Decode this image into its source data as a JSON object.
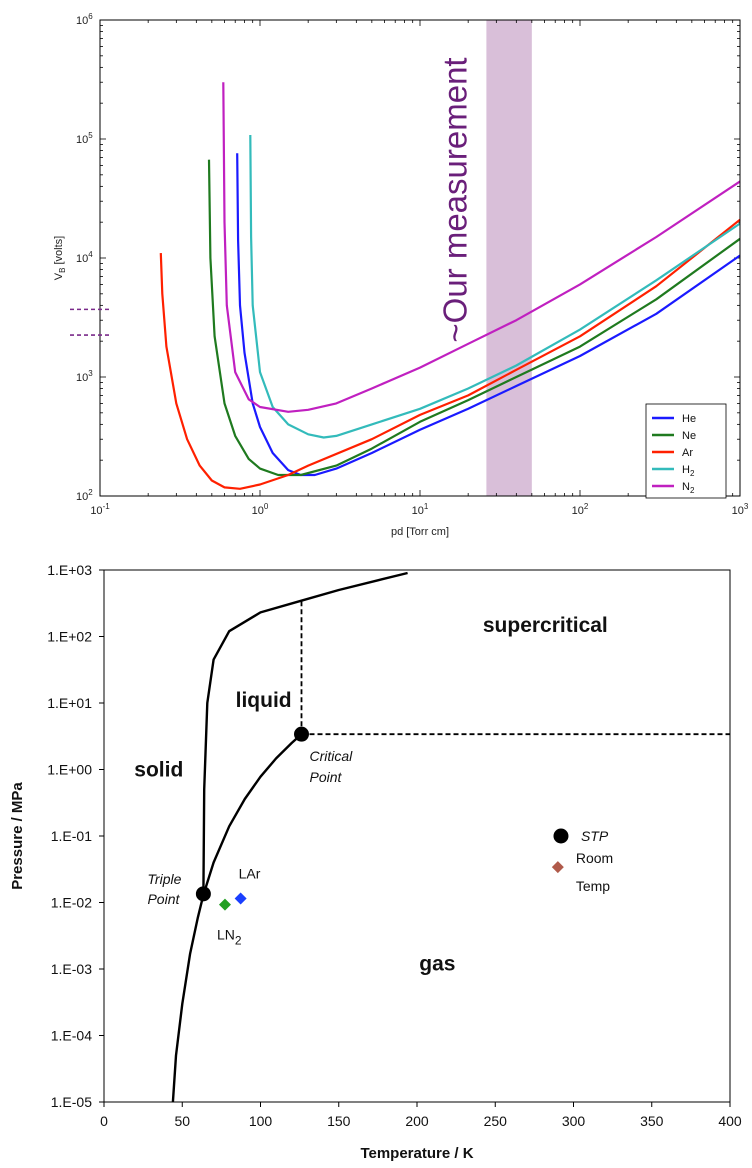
{
  "chart_data": [
    {
      "type": "line",
      "xscale": "log",
      "yscale": "log",
      "xlabel": "pd [Torr cm]",
      "ylabel": "V",
      "ylabel_sub": "B",
      "ylabel_unit": "[volts]",
      "xlim": [
        0.1,
        1000
      ],
      "ylim": [
        100,
        1000000
      ],
      "x_ticks": [
        {
          "v": 0.1,
          "b": "10",
          "e": "-1"
        },
        {
          "v": 1,
          "b": "10",
          "e": "0"
        },
        {
          "v": 10,
          "b": "10",
          "e": "1"
        },
        {
          "v": 100,
          "b": "10",
          "e": "2"
        },
        {
          "v": 1000,
          "b": "10",
          "e": "3"
        }
      ],
      "y_ticks": [
        {
          "v": 100,
          "b": "10",
          "e": "2"
        },
        {
          "v": 1000,
          "b": "10",
          "e": "3"
        },
        {
          "v": 10000,
          "b": "10",
          "e": "4"
        },
        {
          "v": 100000,
          "b": "10",
          "e": "5"
        },
        {
          "v": 1000000,
          "b": "10",
          "e": "6"
        }
      ],
      "legend_position": "lower-right",
      "series": [
        {
          "name": "He",
          "sub": "",
          "color": "#1a1aff",
          "points": [
            [
              0.72,
              76000
            ],
            [
              0.73,
              14000
            ],
            [
              0.75,
              4000
            ],
            [
              0.8,
              1600
            ],
            [
              0.9,
              600
            ],
            [
              1.0,
              380
            ],
            [
              1.2,
              230
            ],
            [
              1.5,
              165
            ],
            [
              1.8,
              150
            ],
            [
              2.2,
              150
            ],
            [
              3,
              170
            ],
            [
              5,
              230
            ],
            [
              10,
              360
            ],
            [
              20,
              540
            ],
            [
              40,
              840
            ],
            [
              100,
              1500
            ],
            [
              300,
              3400
            ],
            [
              1000,
              10500
            ]
          ]
        },
        {
          "name": "Ne",
          "sub": "",
          "color": "#1f7a1f",
          "points": [
            [
              0.48,
              67000
            ],
            [
              0.49,
              10000
            ],
            [
              0.52,
              2200
            ],
            [
              0.6,
              600
            ],
            [
              0.7,
              320
            ],
            [
              0.85,
              205
            ],
            [
              1.0,
              170
            ],
            [
              1.3,
              150
            ],
            [
              1.8,
              150
            ],
            [
              3,
              180
            ],
            [
              5,
              250
            ],
            [
              10,
              420
            ],
            [
              20,
              640
            ],
            [
              40,
              1000
            ],
            [
              100,
              1800
            ],
            [
              300,
              4500
            ],
            [
              1000,
              14500
            ]
          ]
        },
        {
          "name": "Ar",
          "sub": "",
          "color": "#ff2000",
          "points": [
            [
              0.24,
              11000
            ],
            [
              0.245,
              5000
            ],
            [
              0.26,
              1800
            ],
            [
              0.3,
              600
            ],
            [
              0.35,
              300
            ],
            [
              0.42,
              180
            ],
            [
              0.5,
              135
            ],
            [
              0.6,
              118
            ],
            [
              0.75,
              115
            ],
            [
              1.0,
              125
            ],
            [
              1.5,
              150
            ],
            [
              2,
              180
            ],
            [
              5,
              300
            ],
            [
              10,
              480
            ],
            [
              20,
              700
            ],
            [
              40,
              1150
            ],
            [
              100,
              2200
            ],
            [
              300,
              5800
            ],
            [
              1000,
              21000
            ]
          ]
        },
        {
          "name": "H",
          "sub": "2",
          "color": "#33bbbb",
          "points": [
            [
              0.87,
              108000
            ],
            [
              0.88,
              15000
            ],
            [
              0.9,
              4000
            ],
            [
              1.0,
              1100
            ],
            [
              1.2,
              560
            ],
            [
              1.5,
              400
            ],
            [
              2,
              330
            ],
            [
              2.5,
              310
            ],
            [
              3,
              320
            ],
            [
              5,
              400
            ],
            [
              10,
              540
            ],
            [
              20,
              800
            ],
            [
              40,
              1250
            ],
            [
              100,
              2500
            ],
            [
              300,
              6500
            ],
            [
              1000,
              19500
            ]
          ]
        },
        {
          "name": "N",
          "sub": "2",
          "color": "#c020c0",
          "points": [
            [
              0.59,
              300000
            ],
            [
              0.6,
              20000
            ],
            [
              0.62,
              4000
            ],
            [
              0.7,
              1100
            ],
            [
              0.85,
              650
            ],
            [
              1.0,
              560
            ],
            [
              1.5,
              510
            ],
            [
              2,
              530
            ],
            [
              3,
              600
            ],
            [
              5,
              800
            ],
            [
              10,
              1200
            ],
            [
              20,
              1900
            ],
            [
              40,
              3000
            ],
            [
              100,
              6000
            ],
            [
              300,
              15000
            ],
            [
              1000,
              44000
            ]
          ]
        }
      ],
      "shaded_band": {
        "x_range": [
          26,
          50
        ],
        "label": "~Our measurement",
        "color": "#d9bfd9"
      },
      "markers": [
        {
          "y": 3700,
          "color": "#7a2a8a"
        },
        {
          "y": 2250,
          "color": "#7a2a8a"
        }
      ]
    },
    {
      "type": "line",
      "xscale": "linear",
      "yscale": "log",
      "xlabel": "Temperature / K",
      "ylabel": "Pressure / MPa",
      "xlim": [
        0,
        400
      ],
      "ylim": [
        1e-05,
        1000
      ],
      "x_ticks": [
        0,
        50,
        100,
        150,
        200,
        250,
        300,
        350,
        400
      ],
      "y_ticks": [
        {
          "v": 1000,
          "label": "1.E+03"
        },
        {
          "v": 100,
          "label": "1.E+02"
        },
        {
          "v": 10,
          "label": "1.E+01"
        },
        {
          "v": 1,
          "label": "1.E+00"
        },
        {
          "v": 0.1,
          "label": "1.E-01"
        },
        {
          "v": 0.01,
          "label": "1.E-02"
        },
        {
          "v": 0.001,
          "label": "1.E-03"
        },
        {
          "v": 0.0001,
          "label": "1.E-04"
        },
        {
          "v": 1e-05,
          "label": "1.E-05"
        }
      ],
      "curves": [
        {
          "name": "melting",
          "points": [
            [
              63.5,
              0.013
            ],
            [
              64,
              0.5
            ],
            [
              66,
              10
            ],
            [
              70,
              45
            ],
            [
              80,
              120
            ],
            [
              100,
              230
            ],
            [
              125,
              340
            ],
            [
              150,
              500
            ],
            [
              175,
              700
            ],
            [
              194,
              900
            ]
          ]
        },
        {
          "name": "vaporization",
          "points": [
            [
              63.5,
              0.013
            ],
            [
              70,
              0.04
            ],
            [
              80,
              0.14
            ],
            [
              90,
              0.36
            ],
            [
              100,
              0.78
            ],
            [
              110,
              1.47
            ],
            [
              120,
              2.51
            ],
            [
              126.2,
              3.4
            ]
          ]
        },
        {
          "name": "sublimation",
          "points": [
            [
              44,
              1e-05
            ],
            [
              46,
              5e-05
            ],
            [
              50,
              0.0003
            ],
            [
              55,
              0.0017
            ],
            [
              60,
              0.006
            ],
            [
              63.5,
              0.013
            ]
          ]
        }
      ],
      "dashed_lines": [
        {
          "points": [
            [
              126.2,
              3.4
            ],
            [
              126.2,
              370
            ]
          ]
        },
        {
          "points": [
            [
              126.2,
              3.4
            ],
            [
              400,
              3.4
            ]
          ]
        }
      ],
      "regions": [
        {
          "label": "solid",
          "x": 35,
          "y": 1.0
        },
        {
          "label": "liquid",
          "x": 102,
          "y": 11
        },
        {
          "label": "supercritical",
          "x": 282,
          "y": 150
        },
        {
          "label": "gas",
          "x": 213,
          "y": 0.0012
        }
      ],
      "points": [
        {
          "label": "Triple Point",
          "line1": "Triple",
          "line2": "Point",
          "x": 63.5,
          "y": 0.0135,
          "shape": "circle",
          "color": "#000000"
        },
        {
          "label": "Critical Point",
          "line1": "Critical",
          "line2": "Point",
          "x": 126.2,
          "y": 3.4,
          "shape": "circle",
          "color": "#000000"
        },
        {
          "label": "STP",
          "x": 292,
          "y": 0.1,
          "shape": "circle",
          "color": "#000000"
        },
        {
          "label": "LAr",
          "x": 87.3,
          "y": 0.0115,
          "shape": "diamond",
          "color": "#1a3fff"
        },
        {
          "label": "LN2",
          "x": 77.3,
          "y": 0.0093,
          "shape": "diamond",
          "color": "#22a022"
        },
        {
          "label": "Room Temp",
          "x": 290,
          "y": 0.034,
          "shape": "diamond",
          "color": "#b05a4a"
        }
      ],
      "label_text": {
        "lar": "LAr",
        "ln2_main": "LN",
        "ln2_sub": "2",
        "room1": "Room",
        "room2": "Temp",
        "stp": "STP"
      },
      "label_colors": {
        "lar": "#1a3fff",
        "ln2": "#22a022",
        "room": "#8b1a1a"
      }
    }
  ]
}
